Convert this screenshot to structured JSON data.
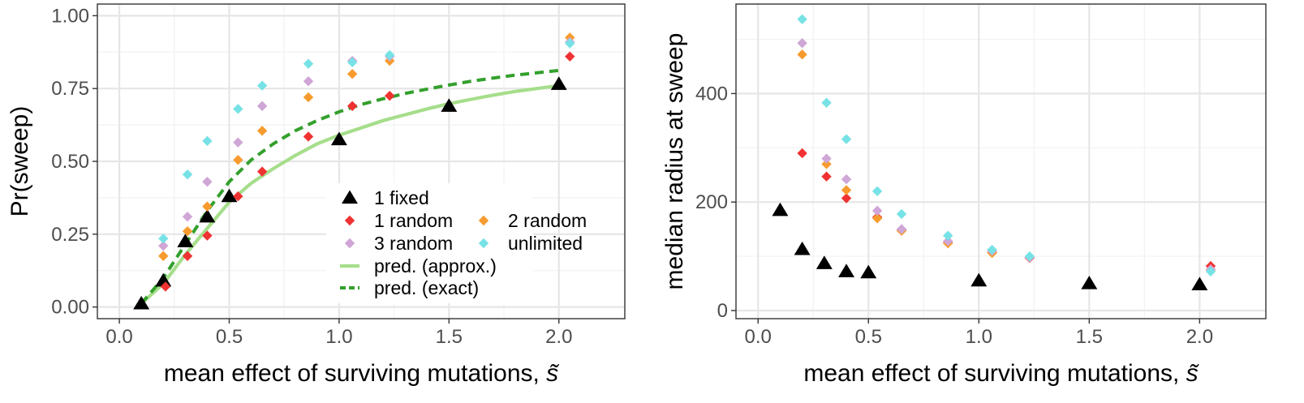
{
  "colors": {
    "1 fixed": "#000000",
    "1 random": "#f03232",
    "2 random": "#f79b2e",
    "3 random": "#cfa6d6",
    "unlimited": "#77e2e6",
    "pred. (approx.)": "#a6de8b",
    "pred. (exact)": "#33a02c"
  },
  "chart_data": [
    {
      "type": "scatter",
      "panel": "left",
      "xlabel": "mean effect of surviving mutations, ",
      "xlabel_symbol": "s̃",
      "ylabel": "Pr(sweep)",
      "xlim": [
        -0.1,
        2.3
      ],
      "ylim": [
        -0.04,
        1.04
      ],
      "xticks": [
        0.0,
        0.5,
        1.0,
        1.5,
        2.0
      ],
      "xtick_labels": [
        "0.0",
        "0.5",
        "1.0",
        "1.5",
        "2.0"
      ],
      "yticks": [
        0.0,
        0.25,
        0.5,
        0.75,
        1.0
      ],
      "ytick_labels": [
        "0.00",
        "0.25",
        "0.50",
        "0.75",
        "1.00"
      ],
      "legend": {
        "position": "bottom-right",
        "entries": [
          "1 fixed",
          "1 random",
          "2 random",
          "3 random",
          "unlimited",
          "pred. (approx.)",
          "pred. (exact)"
        ]
      },
      "series": [
        {
          "name": "1 fixed",
          "marker": "triangle",
          "x": [
            0.1,
            0.2,
            0.3,
            0.4,
            0.5,
            1.0,
            1.5,
            2.0
          ],
          "y": [
            0.012,
            0.09,
            0.225,
            0.31,
            0.38,
            0.575,
            0.69,
            0.765
          ]
        },
        {
          "name": "1 random",
          "marker": "diamond",
          "x": [
            0.21,
            0.31,
            0.4,
            0.54,
            0.65,
            0.86,
            1.06,
            1.23,
            2.05
          ],
          "y": [
            0.07,
            0.175,
            0.245,
            0.38,
            0.465,
            0.585,
            0.69,
            0.725,
            0.86
          ]
        },
        {
          "name": "2 random",
          "marker": "diamond",
          "x": [
            0.2,
            0.31,
            0.4,
            0.54,
            0.65,
            0.86,
            1.06,
            1.23,
            2.05
          ],
          "y": [
            0.175,
            0.26,
            0.345,
            0.505,
            0.605,
            0.72,
            0.8,
            0.845,
            0.925
          ]
        },
        {
          "name": "3 random",
          "marker": "diamond",
          "x": [
            0.2,
            0.31,
            0.4,
            0.54,
            0.65,
            0.86,
            1.06,
            1.23,
            2.05
          ],
          "y": [
            0.21,
            0.31,
            0.43,
            0.565,
            0.69,
            0.775,
            0.845,
            0.86,
            0.91
          ]
        },
        {
          "name": "unlimited",
          "marker": "diamond",
          "x": [
            0.2,
            0.31,
            0.4,
            0.54,
            0.65,
            0.86,
            1.06,
            1.23,
            2.05
          ],
          "y": [
            0.235,
            0.455,
            0.57,
            0.68,
            0.76,
            0.835,
            0.84,
            0.865,
            0.905
          ]
        },
        {
          "name": "pred. (approx.)",
          "marker": "line",
          "dash": "solid",
          "x": [
            0.1,
            0.2,
            0.3,
            0.4,
            0.5,
            0.6,
            0.7,
            0.8,
            0.9,
            1.0,
            1.1,
            1.2,
            1.3,
            1.4,
            1.5,
            1.6,
            1.7,
            1.8,
            1.9,
            2.0
          ],
          "y": [
            0.012,
            0.08,
            0.18,
            0.27,
            0.36,
            0.425,
            0.475,
            0.52,
            0.56,
            0.59,
            0.615,
            0.64,
            0.66,
            0.68,
            0.698,
            0.713,
            0.727,
            0.74,
            0.75,
            0.76
          ]
        },
        {
          "name": "pred. (exact)",
          "marker": "line",
          "dash": "dashed",
          "x": [
            0.1,
            0.2,
            0.3,
            0.4,
            0.5,
            0.6,
            0.7,
            0.8,
            0.9,
            1.0,
            1.1,
            1.2,
            1.3,
            1.4,
            1.5,
            1.6,
            1.7,
            1.8,
            1.9,
            2.0
          ],
          "y": [
            0.012,
            0.1,
            0.215,
            0.33,
            0.43,
            0.505,
            0.56,
            0.605,
            0.64,
            0.67,
            0.695,
            0.715,
            0.733,
            0.748,
            0.762,
            0.775,
            0.786,
            0.796,
            0.804,
            0.812
          ]
        }
      ]
    },
    {
      "type": "scatter",
      "panel": "right",
      "xlabel": "mean effect of surviving mutations, ",
      "xlabel_symbol": "s̃",
      "ylabel": "median radius at sweep",
      "xlim": [
        -0.1,
        2.3
      ],
      "ylim": [
        -15,
        565
      ],
      "xticks": [
        0.0,
        0.5,
        1.0,
        1.5,
        2.0
      ],
      "xtick_labels": [
        "0.0",
        "0.5",
        "1.0",
        "1.5",
        "2.0"
      ],
      "yticks": [
        0,
        200,
        400
      ],
      "ytick_labels": [
        "0",
        "200",
        "400"
      ],
      "legend": {
        "position": "none",
        "entries": []
      },
      "series": [
        {
          "name": "1 fixed",
          "marker": "triangle",
          "x": [
            0.1,
            0.2,
            0.3,
            0.4,
            0.5,
            1.0,
            1.5,
            2.0
          ],
          "y": [
            185,
            113,
            87,
            72,
            70,
            55,
            50,
            48
          ]
        },
        {
          "name": "1 random",
          "marker": "diamond",
          "x": [
            0.2,
            0.31,
            0.4,
            0.54,
            0.65,
            0.86,
            1.06,
            1.23,
            2.05
          ],
          "y": [
            290,
            247,
            207,
            172,
            148,
            125,
            107,
            97,
            82
          ]
        },
        {
          "name": "2 random",
          "marker": "diamond",
          "x": [
            0.2,
            0.31,
            0.4,
            0.54,
            0.65,
            0.86,
            1.06,
            1.23,
            2.05
          ],
          "y": [
            472,
            270,
            222,
            170,
            147,
            124,
            106,
            98,
            75
          ]
        },
        {
          "name": "3 random",
          "marker": "diamond",
          "x": [
            0.2,
            0.31,
            0.4,
            0.54,
            0.65,
            0.86,
            1.06,
            1.23,
            2.05
          ],
          "y": [
            493,
            280,
            242,
            184,
            150,
            128,
            110,
            98,
            76
          ]
        },
        {
          "name": "unlimited",
          "marker": "diamond",
          "x": [
            0.2,
            0.31,
            0.4,
            0.54,
            0.65,
            0.86,
            1.06,
            1.23,
            2.05
          ],
          "y": [
            537,
            383,
            316,
            220,
            178,
            138,
            112,
            100,
            72
          ]
        }
      ]
    }
  ]
}
